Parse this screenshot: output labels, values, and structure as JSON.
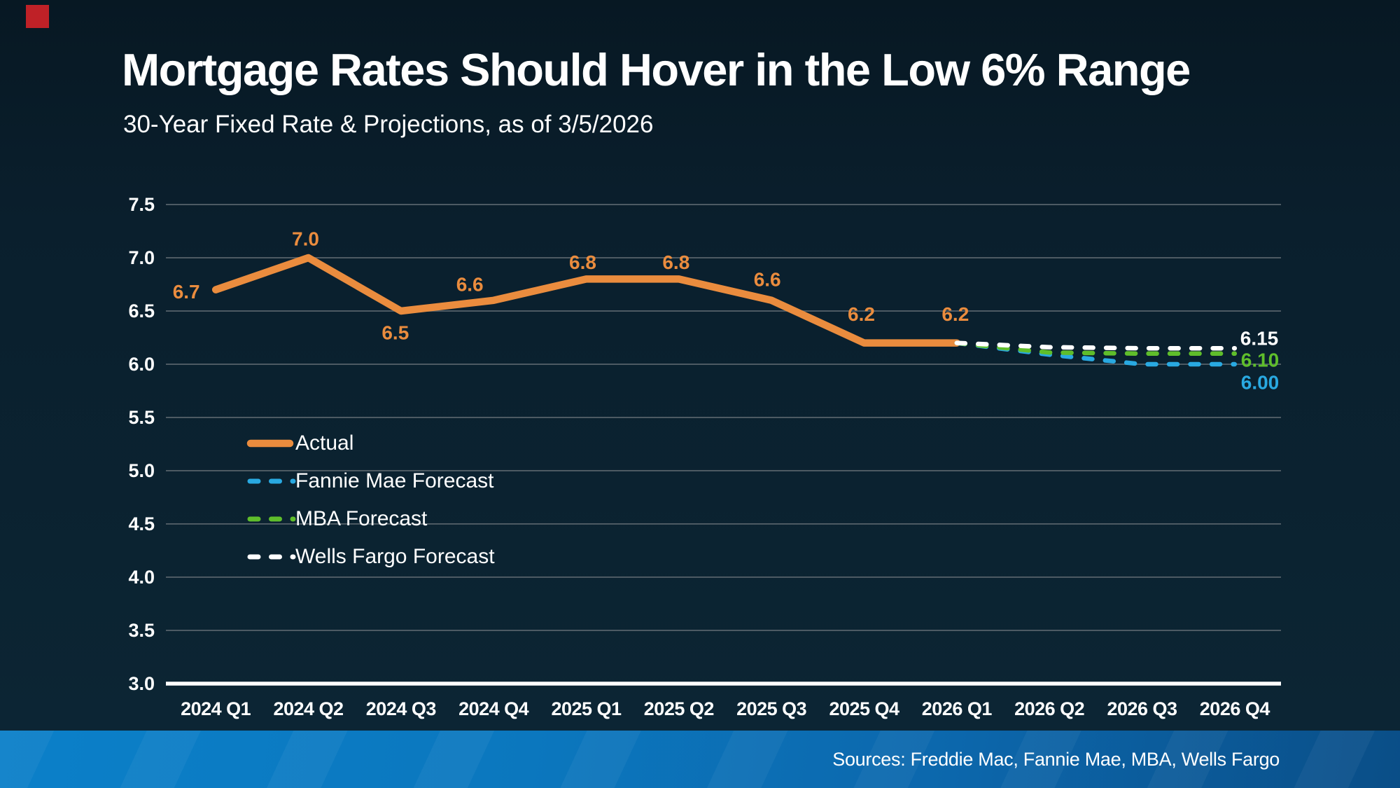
{
  "footer": {
    "sources": "Sources: Freddie Mac, Fannie Mae, MBA, Wells Fargo"
  },
  "colors": {
    "background": "#0a1f2d",
    "grid": "#4d5a63",
    "axis_baseline": "#ffffff",
    "text": "#ffffff",
    "accent_orange": "#ea8c3e",
    "accent_blue": "#29a9e1",
    "accent_green": "#5fbe2b",
    "accent_white": "#ffffff",
    "footer_blue_left": "#0b80c9",
    "footer_blue_right": "#0a4e87",
    "logo_red": "#bf2127"
  },
  "chart_data": {
    "type": "line",
    "title": "Mortgage Rates Should Hover in the Low 6% Range",
    "subtitle": "30-Year Fixed Rate & Projections, as of 3/5/2026",
    "categories": [
      "2024 Q1",
      "2024 Q2",
      "2024 Q3",
      "2024 Q4",
      "2025 Q1",
      "2025 Q2",
      "2025 Q3",
      "2025 Q4",
      "2026 Q1",
      "2026 Q2",
      "2026 Q3",
      "2026 Q4"
    ],
    "xlabel": "",
    "ylabel": "",
    "ylim": [
      3.0,
      7.5
    ],
    "y_ticks": [
      "7.5",
      "7.0",
      "6.5",
      "6.0",
      "5.5",
      "5.0",
      "4.5",
      "4.0",
      "3.5",
      "3.0"
    ],
    "grid": true,
    "legend_position": "middle-left",
    "series": [
      {
        "name": "Actual",
        "color": "#ea8c3e",
        "style": "solid",
        "values": [
          6.7,
          7.0,
          6.5,
          6.6,
          6.8,
          6.8,
          6.6,
          6.2,
          6.2,
          null,
          null,
          null
        ],
        "point_labels": [
          "6.7",
          "7.0",
          "6.5",
          "6.6",
          "6.8",
          "6.8",
          "6.6",
          "6.2",
          "6.2"
        ]
      },
      {
        "name": "Fannie Mae Forecast",
        "color": "#29a9e1",
        "style": "dashed",
        "values": [
          null,
          null,
          null,
          null,
          null,
          null,
          null,
          null,
          6.2,
          6.09,
          6.0,
          6.0
        ],
        "end_label": "6.00"
      },
      {
        "name": "MBA Forecast",
        "color": "#5fbe2b",
        "style": "dashed",
        "values": [
          null,
          null,
          null,
          null,
          null,
          null,
          null,
          null,
          6.2,
          6.11,
          6.1,
          6.1
        ],
        "end_label": "6.10"
      },
      {
        "name": "Wells Fargo Forecast",
        "color": "#ffffff",
        "style": "dashed",
        "values": [
          null,
          null,
          null,
          null,
          null,
          null,
          null,
          null,
          6.2,
          6.16,
          6.15,
          6.15
        ],
        "end_label": "6.15"
      }
    ]
  }
}
